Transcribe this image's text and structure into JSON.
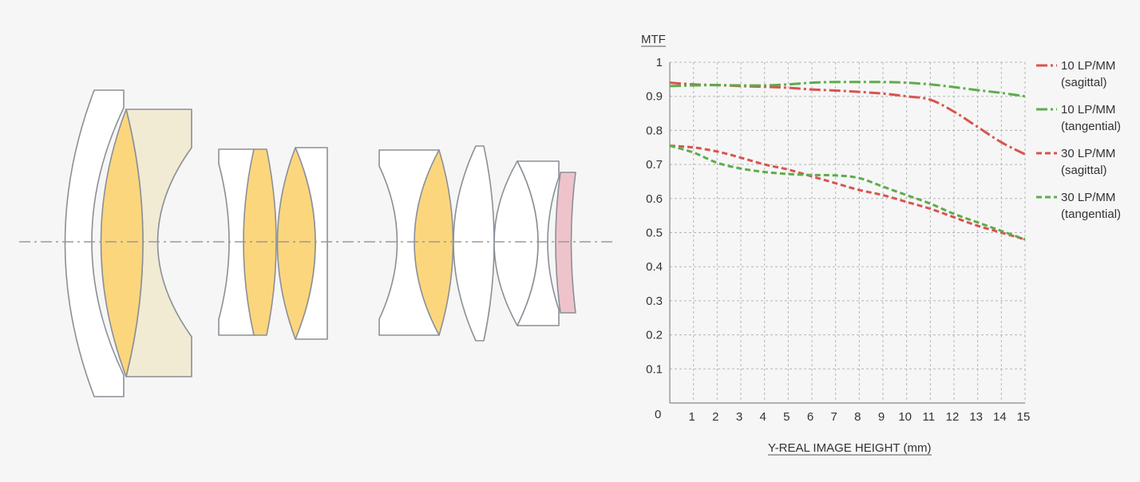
{
  "chart_data": {
    "type": "line",
    "ylabel": "MTF",
    "xlabel": "Y-REAL IMAGE HEIGHT (mm)",
    "xlim": [
      0,
      15
    ],
    "ylim": [
      0,
      1
    ],
    "xticks": [
      1,
      2,
      3,
      4,
      5,
      6,
      7,
      8,
      9,
      10,
      11,
      12,
      13,
      14,
      15
    ],
    "yticks": [
      0.1,
      0.2,
      0.3,
      0.4,
      0.5,
      0.6,
      0.7,
      0.8,
      0.9,
      1
    ],
    "origin_label": "0",
    "grid": true,
    "legend_position": "right",
    "series": [
      {
        "name": "10 LP/MM",
        "name_sub": "(sagittal)",
        "color": "#d9534f",
        "dash": "dash-dot",
        "points": [
          [
            0,
            0.94
          ],
          [
            1,
            0.935
          ],
          [
            2,
            0.933
          ],
          [
            3,
            0.93
          ],
          [
            4,
            0.928
          ],
          [
            5,
            0.925
          ],
          [
            6,
            0.92
          ],
          [
            7,
            0.917
          ],
          [
            8,
            0.913
          ],
          [
            9,
            0.908
          ],
          [
            10,
            0.9
          ],
          [
            11,
            0.89
          ],
          [
            12,
            0.855
          ],
          [
            13,
            0.81
          ],
          [
            14,
            0.765
          ],
          [
            15,
            0.73
          ]
        ]
      },
      {
        "name": "10 LP/MM",
        "name_sub": "(tangential)",
        "color": "#5cad4a",
        "dash": "dash-dot",
        "points": [
          [
            0,
            0.93
          ],
          [
            1,
            0.932
          ],
          [
            2,
            0.933
          ],
          [
            3,
            0.932
          ],
          [
            4,
            0.932
          ],
          [
            5,
            0.935
          ],
          [
            6,
            0.94
          ],
          [
            7,
            0.942
          ],
          [
            8,
            0.942
          ],
          [
            9,
            0.942
          ],
          [
            10,
            0.94
          ],
          [
            11,
            0.935
          ],
          [
            12,
            0.927
          ],
          [
            13,
            0.918
          ],
          [
            14,
            0.91
          ],
          [
            15,
            0.9
          ]
        ]
      },
      {
        "name": "30 LP/MM",
        "name_sub": "(sagittal)",
        "color": "#d9534f",
        "dash": "dash",
        "points": [
          [
            0,
            0.755
          ],
          [
            1,
            0.75
          ],
          [
            2,
            0.738
          ],
          [
            3,
            0.72
          ],
          [
            4,
            0.7
          ],
          [
            5,
            0.685
          ],
          [
            6,
            0.665
          ],
          [
            7,
            0.645
          ],
          [
            8,
            0.625
          ],
          [
            9,
            0.61
          ],
          [
            10,
            0.59
          ],
          [
            11,
            0.57
          ],
          [
            12,
            0.545
          ],
          [
            13,
            0.52
          ],
          [
            14,
            0.5
          ],
          [
            15,
            0.48
          ]
        ]
      },
      {
        "name": "30 LP/MM",
        "name_sub": "(tangential)",
        "color": "#5cad4a",
        "dash": "dash",
        "points": [
          [
            0,
            0.755
          ],
          [
            1,
            0.735
          ],
          [
            2,
            0.705
          ],
          [
            3,
            0.688
          ],
          [
            4,
            0.678
          ],
          [
            5,
            0.672
          ],
          [
            6,
            0.669
          ],
          [
            7,
            0.668
          ],
          [
            8,
            0.66
          ],
          [
            9,
            0.635
          ],
          [
            10,
            0.61
          ],
          [
            11,
            0.585
          ],
          [
            12,
            0.555
          ],
          [
            13,
            0.53
          ],
          [
            14,
            0.505
          ],
          [
            15,
            0.48
          ]
        ]
      }
    ]
  },
  "lens_diagram": {
    "elements": [
      {
        "id": 1,
        "fill": "#ffffff"
      },
      {
        "id": 2,
        "fill": "#fcd67d"
      },
      {
        "id": 3,
        "fill": "#f1ebd4"
      },
      {
        "id": 4,
        "fill": "#ffffff"
      },
      {
        "id": 5,
        "fill": "#fcd67d"
      },
      {
        "id": 6,
        "fill": "#fcd67d"
      },
      {
        "id": 7,
        "fill": "#ffffff"
      },
      {
        "id": 8,
        "fill": "#ffffff"
      },
      {
        "id": 9,
        "fill": "#fcd67d"
      },
      {
        "id": 10,
        "fill": "#ffffff"
      },
      {
        "id": 11,
        "fill": "#ffffff"
      },
      {
        "id": 12,
        "fill": "#ffffff"
      },
      {
        "id": 13,
        "fill": "#efc3cb"
      }
    ],
    "outline_color": "#8a9097",
    "axis_color": "#9a9a9a"
  }
}
